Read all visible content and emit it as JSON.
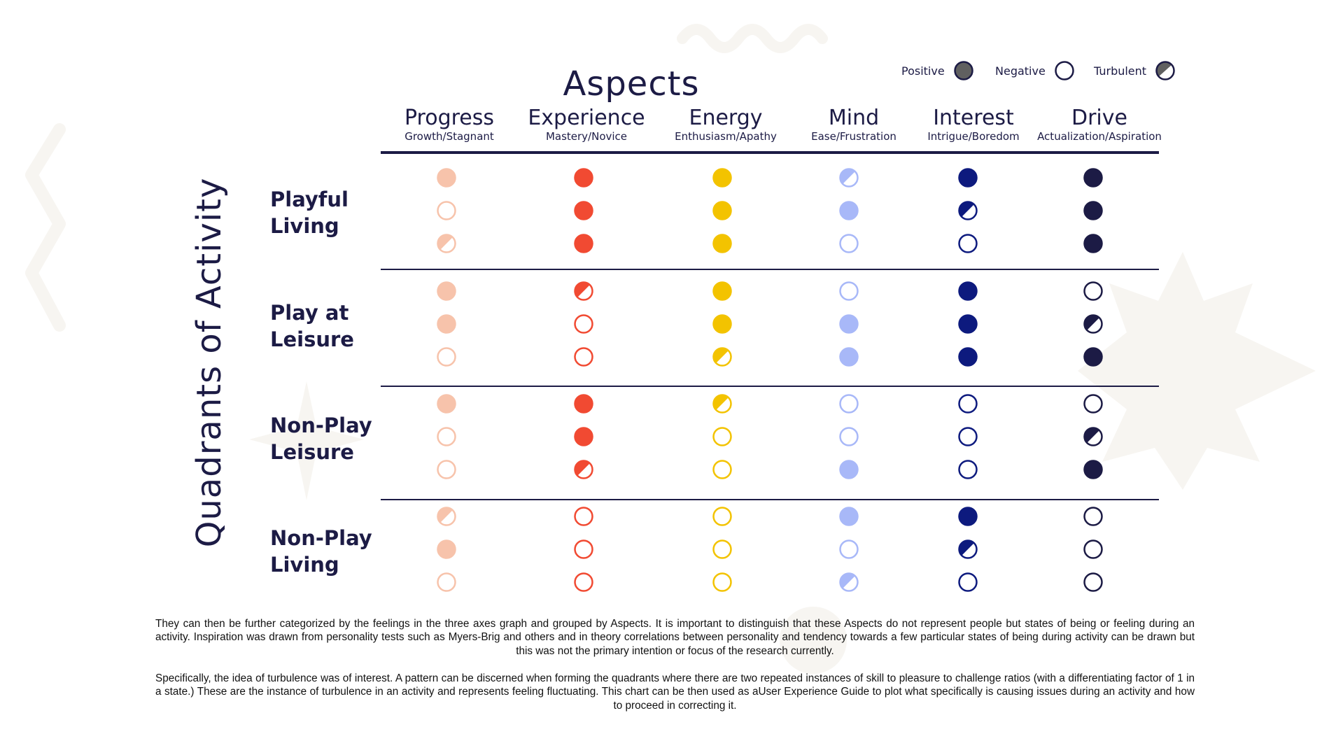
{
  "title": "Aspects",
  "vertical_label": "Quadrants of Activity",
  "legend": [
    {
      "label": "Positive",
      "state": "positive"
    },
    {
      "label": "Negative",
      "state": "negative"
    },
    {
      "label": "Turbulent",
      "state": "turbulent"
    }
  ],
  "columns": [
    {
      "name": "Progress",
      "sub": "Growth/Stagnant",
      "color": "#f7c3ab"
    },
    {
      "name": "Experience",
      "sub": "Mastery/Novice",
      "color": "#f14a32"
    },
    {
      "name": "Energy",
      "sub": "Enthusiasm/Apathy",
      "color": "#f3c300"
    },
    {
      "name": "Mind",
      "sub": "Ease/Frustration",
      "color": "#a8b8f8"
    },
    {
      "name": "Interest",
      "sub": "Intrigue/Boredom",
      "color": "#0d1a7e"
    },
    {
      "name": "Drive",
      "sub": "Actualization/Aspiration",
      "color": "#1c1b45"
    }
  ],
  "quadrants": [
    {
      "line1": "Playful",
      "line2": "Living",
      "rows": [
        [
          "P",
          "P",
          "P",
          "T",
          "P",
          "P"
        ],
        [
          "N",
          "P",
          "P",
          "P",
          "T",
          "P"
        ],
        [
          "T",
          "P",
          "P",
          "N",
          "N",
          "P"
        ]
      ]
    },
    {
      "line1": "Play at",
      "line2": "Leisure",
      "rows": [
        [
          "P",
          "T",
          "P",
          "N",
          "P",
          "N"
        ],
        [
          "P",
          "N",
          "P",
          "P",
          "P",
          "T"
        ],
        [
          "N",
          "N",
          "T",
          "P",
          "P",
          "P"
        ]
      ]
    },
    {
      "line1": "Non-Play",
      "line2": "Leisure",
      "rows": [
        [
          "P",
          "P",
          "T",
          "N",
          "N",
          "N"
        ],
        [
          "N",
          "P",
          "N",
          "N",
          "N",
          "T"
        ],
        [
          "N",
          "T",
          "N",
          "P",
          "N",
          "P"
        ]
      ]
    },
    {
      "line1": "Non-Play",
      "line2": "Living",
      "rows": [
        [
          "T",
          "N",
          "N",
          "P",
          "P",
          "N"
        ],
        [
          "P",
          "N",
          "N",
          "N",
          "T",
          "N"
        ],
        [
          "N",
          "N",
          "N",
          "T",
          "N",
          "N"
        ]
      ]
    }
  ],
  "paragraphs": [
    "They can then be further categorized by the feelings in the three axes graph and grouped by Aspects. It is important to distinguish that these Aspects do not represent people but states of being or feeling during an activity. Inspiration was drawn from personality tests such as Myers-Brig and others and in theory correlations between personality and tendency towards a few particular states of being during activity can be drawn but this was not the primary intention or focus of the research currently.",
    "Specifically, the idea of turbulence was of interest. A pattern can be discerned when forming the quadrants where there are two repeated instances of skill to pleasure to challenge ratios (with a differentiating factor of 1 in a state.) These are the instance of turbulence in an activity and represents feeling fluctuating. This chart can be then used as aUser Experience Guide to plot what specifically is causing issues during an activity and how to proceed in correcting it."
  ],
  "colors": {
    "ink": "#1c1b45",
    "legend_fill": "#606060",
    "decoration": "#f7f5f1"
  }
}
